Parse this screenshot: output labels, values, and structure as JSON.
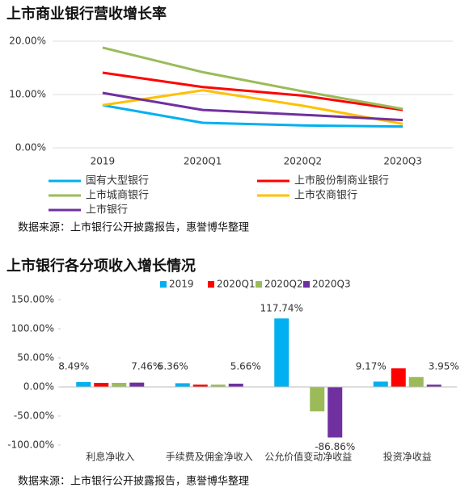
{
  "chart_data": [
    {
      "type": "line",
      "title": "上市商业银行营收增长率",
      "categories": [
        "2019",
        "2020Q1",
        "2020Q2",
        "2020Q3"
      ],
      "series": [
        {
          "name": "国有大型银行",
          "color": "#00b0f0",
          "values": [
            8.0,
            4.7,
            4.2,
            4.0
          ]
        },
        {
          "name": "上市股份制商业银行",
          "color": "#ff0000",
          "values": [
            14.1,
            11.4,
            9.8,
            7.1
          ]
        },
        {
          "name": "上市城商银行",
          "color": "#9bbb59",
          "values": [
            18.8,
            14.2,
            10.6,
            7.3
          ]
        },
        {
          "name": "上市农商银行",
          "color": "#ffc000",
          "values": [
            8.0,
            10.8,
            7.9,
            4.5
          ]
        },
        {
          "name": "上市银行",
          "color": "#7030a0",
          "values": [
            10.3,
            7.1,
            6.2,
            5.2
          ]
        }
      ],
      "ylim": [
        0,
        20
      ],
      "yticks": [
        {
          "value": 0,
          "label": "0.00%"
        },
        {
          "value": 10,
          "label": "10.00%"
        },
        {
          "value": 20,
          "label": "20.00%"
        }
      ],
      "grid": true,
      "legend": "bottom",
      "note": "数据来源：上市银行公开披露报告，惠誉博华整理"
    },
    {
      "type": "bar",
      "title": "上市银行各分项收入增长情况",
      "categories": [
        "利息净收入",
        "手续费及佣金净收入",
        "公允价值变动净收益",
        "投资净收益"
      ],
      "series": [
        {
          "name": "2019",
          "color": "#00b0f0",
          "values": [
            8.49,
            6.36,
            117.74,
            9.17
          ],
          "value_labels": [
            "8.49%",
            "6.36%",
            "117.74%",
            "9.17%"
          ]
        },
        {
          "name": "2020Q1",
          "color": "#ff0000",
          "values": [
            7,
            4,
            0,
            32
          ],
          "value_labels": [
            null,
            null,
            null,
            null
          ]
        },
        {
          "name": "2020Q2",
          "color": "#9bbb59",
          "values": [
            7,
            4,
            -42,
            17
          ],
          "value_labels": [
            null,
            null,
            null,
            null
          ]
        },
        {
          "name": "2020Q3",
          "color": "#7030a0",
          "values": [
            7.46,
            5.66,
            -86.86,
            3.95
          ],
          "value_labels": [
            "7.46%",
            "5.66%",
            "-86.86%",
            "3.95%"
          ]
        }
      ],
      "ylim": [
        -100,
        150
      ],
      "yticks": [
        {
          "value": -100,
          "label": "-100.00%"
        },
        {
          "value": -50,
          "label": "-50.00%"
        },
        {
          "value": 0,
          "label": "0.00%"
        },
        {
          "value": 50,
          "label": "50.00%"
        },
        {
          "value": 100,
          "label": "100.00%"
        },
        {
          "value": 150,
          "label": "150.00%"
        }
      ],
      "grid": false,
      "legend": "top",
      "note": "数据来源：上市银行公开披露报告，惠誉博华整理"
    }
  ]
}
